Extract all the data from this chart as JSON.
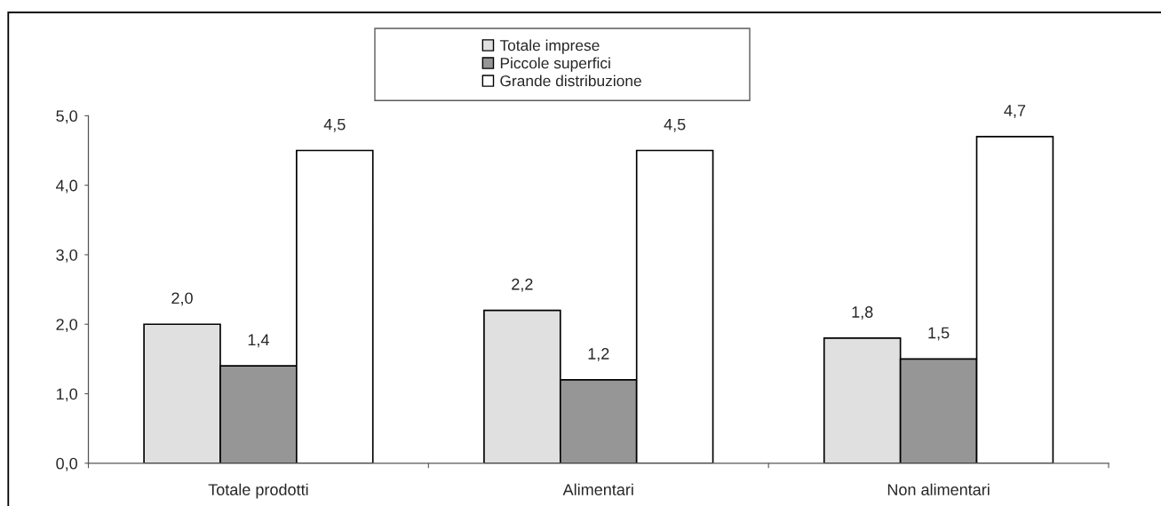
{
  "chart_data": {
    "type": "bar",
    "categories": [
      "Totale prodotti",
      "Alimentari",
      "Non alimentari"
    ],
    "series": [
      {
        "name": "Totale imprese",
        "color": "#e0e0e0",
        "values": [
          2.0,
          2.2,
          1.8
        ],
        "value_labels": [
          "2,0",
          "2,2",
          "1,8"
        ]
      },
      {
        "name": "Piccole superfici",
        "color": "#969696",
        "values": [
          1.4,
          1.2,
          1.5
        ],
        "value_labels": [
          "1,4",
          "1,2",
          "1,5"
        ]
      },
      {
        "name": "Grande distribuzione",
        "color": "#ffffff",
        "values": [
          4.5,
          4.5,
          4.7
        ],
        "value_labels": [
          "4,5",
          "4,5",
          "4,7"
        ]
      }
    ],
    "ylim": [
      0,
      5
    ],
    "yticks": [
      {
        "value": 0,
        "label": "0,0"
      },
      {
        "value": 1,
        "label": "1,0"
      },
      {
        "value": 2,
        "label": "2,0"
      },
      {
        "value": 3,
        "label": "3,0"
      },
      {
        "value": 4,
        "label": "4,0"
      },
      {
        "value": 5,
        "label": "5,0"
      }
    ],
    "grid": false,
    "legend": "top"
  }
}
